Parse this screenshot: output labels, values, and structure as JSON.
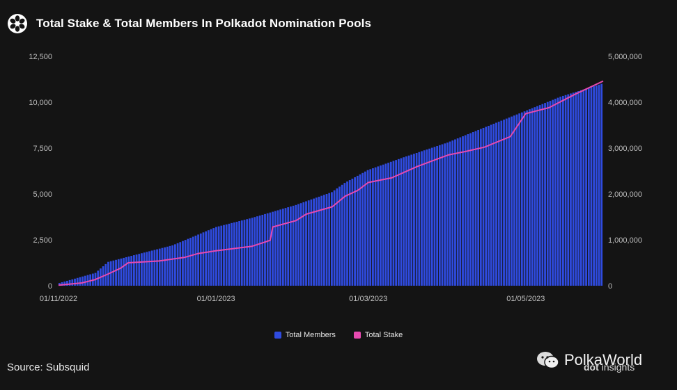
{
  "header": {
    "title": "Total Stake & Total Members In Polkadot Nomination Pools",
    "logo_icon": "polkadot-logo-icon"
  },
  "chart_data": {
    "type": "bar",
    "title": "Total Stake & Total Members In Polkadot Nomination Pools",
    "xlabel": "",
    "ylabel": "",
    "x_tick_labels": [
      "01/11/2022",
      "01/01/2023",
      "01/03/2023",
      "01/05/2023"
    ],
    "y_left": {
      "ticks": [
        0,
        2500,
        5000,
        7500,
        10000,
        12500
      ],
      "tick_labels": [
        "0",
        "2,500",
        "5,000",
        "7,500",
        "10,000",
        "12,500"
      ],
      "range": [
        0,
        12500
      ]
    },
    "y_right": {
      "ticks": [
        0,
        1000000,
        2000000,
        3000000,
        4000000,
        5000000
      ],
      "tick_labels": [
        "0",
        "1,000,000",
        "2,000,000",
        "3,000,000",
        "4,000,000",
        "5,000,000"
      ],
      "range": [
        0,
        5000000
      ]
    },
    "legend_position": "bottom",
    "grid": false,
    "series": [
      {
        "name": "Total Members",
        "type": "bar",
        "axis": "left",
        "color": "#2f4be0",
        "points": [
          {
            "date": "2022-11-01",
            "value": 150
          },
          {
            "date": "2022-11-15",
            "value": 700
          },
          {
            "date": "2022-11-20",
            "value": 1300
          },
          {
            "date": "2022-12-01",
            "value": 1700
          },
          {
            "date": "2022-12-15",
            "value": 2200
          },
          {
            "date": "2023-01-01",
            "value": 3200
          },
          {
            "date": "2023-01-15",
            "value": 3700
          },
          {
            "date": "2023-02-01",
            "value": 4400
          },
          {
            "date": "2023-02-15",
            "value": 5100
          },
          {
            "date": "2023-02-20",
            "value": 5600
          },
          {
            "date": "2023-03-01",
            "value": 6300
          },
          {
            "date": "2023-03-15",
            "value": 7000
          },
          {
            "date": "2023-04-01",
            "value": 7800
          },
          {
            "date": "2023-04-15",
            "value": 8600
          },
          {
            "date": "2023-05-01",
            "value": 9500
          },
          {
            "date": "2023-05-15",
            "value": 10300
          },
          {
            "date": "2023-05-31",
            "value": 11000
          }
        ]
      },
      {
        "name": "Total Stake",
        "type": "line",
        "axis": "right",
        "color": "#e74ab0",
        "points": [
          {
            "date": "2022-11-01",
            "value": 10000
          },
          {
            "date": "2022-11-10",
            "value": 60000
          },
          {
            "date": "2022-11-15",
            "value": 130000
          },
          {
            "date": "2022-11-20",
            "value": 250000
          },
          {
            "date": "2022-11-25",
            "value": 380000
          },
          {
            "date": "2022-11-28",
            "value": 500000
          },
          {
            "date": "2022-12-10",
            "value": 540000
          },
          {
            "date": "2022-12-20",
            "value": 620000
          },
          {
            "date": "2022-12-25",
            "value": 700000
          },
          {
            "date": "2023-01-01",
            "value": 760000
          },
          {
            "date": "2023-01-15",
            "value": 860000
          },
          {
            "date": "2023-01-22",
            "value": 990000
          },
          {
            "date": "2023-01-23",
            "value": 1280000
          },
          {
            "date": "2023-02-01",
            "value": 1420000
          },
          {
            "date": "2023-02-05",
            "value": 1560000
          },
          {
            "date": "2023-02-15",
            "value": 1720000
          },
          {
            "date": "2023-02-20",
            "value": 1950000
          },
          {
            "date": "2023-02-25",
            "value": 2080000
          },
          {
            "date": "2023-03-01",
            "value": 2250000
          },
          {
            "date": "2023-03-10",
            "value": 2350000
          },
          {
            "date": "2023-03-20",
            "value": 2600000
          },
          {
            "date": "2023-04-01",
            "value": 2850000
          },
          {
            "date": "2023-04-08",
            "value": 2930000
          },
          {
            "date": "2023-04-15",
            "value": 3020000
          },
          {
            "date": "2023-04-25",
            "value": 3250000
          },
          {
            "date": "2023-04-28",
            "value": 3500000
          },
          {
            "date": "2023-05-01",
            "value": 3750000
          },
          {
            "date": "2023-05-10",
            "value": 3880000
          },
          {
            "date": "2023-05-20",
            "value": 4170000
          },
          {
            "date": "2023-05-31",
            "value": 4460000
          }
        ]
      }
    ]
  },
  "legend": {
    "members_label": "Total Members",
    "stake_label": "Total Stake"
  },
  "footer": {
    "source": "Source: Subsquid"
  },
  "watermark": {
    "brand": "PolkaWorld",
    "brand_icon": "wechat-icon",
    "secondary": "insights",
    "secondary_prefix": "dot"
  }
}
